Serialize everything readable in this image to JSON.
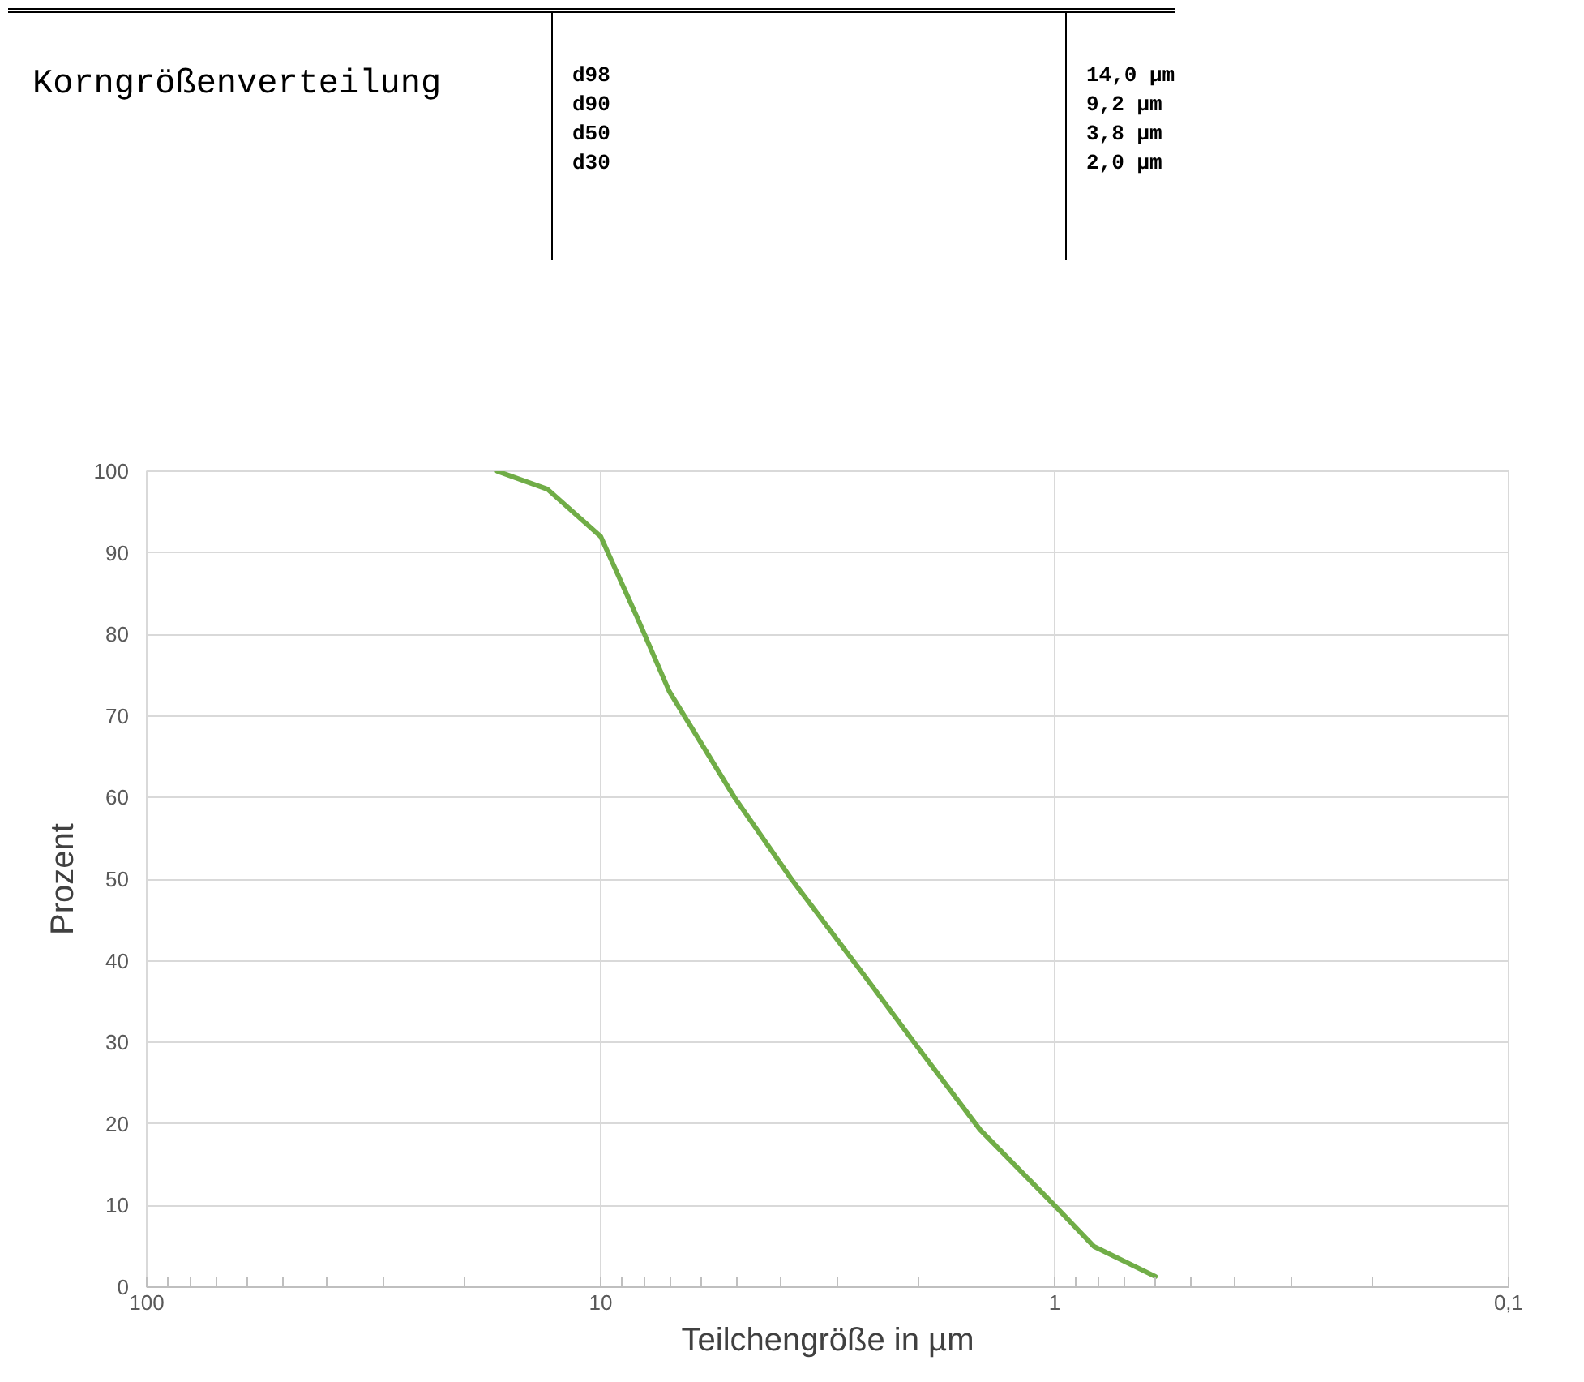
{
  "chart_data": {
    "type": "line",
    "title": "Korngrößenverteilung",
    "annotations": [
      "d98",
      "14,0 µm",
      "d90",
      "9,2 µm",
      "d50",
      "3,8 µm",
      "d30",
      "2,0 µm"
    ],
    "xlabel": "Teilchengröße in µm",
    "ylabel": "Prozent",
    "log": "x",
    "xlim": [
      100,
      0.1
    ],
    "xticks": [
      100,
      10,
      1,
      {
        "value": 0.1,
        "label": "0,1"
      }
    ],
    "ylim": [
      0,
      100
    ],
    "yticks": [
      0,
      10,
      20,
      30,
      40,
      50,
      60,
      70,
      80,
      90,
      100
    ],
    "grid": true,
    "series": [
      {
        "color": "#70ad47",
        "x": [
          16.9,
          13.1,
          10,
          8.3,
          7.06,
          5.07,
          3.8,
          2.61,
          2.04,
          1.46,
          1,
          0.82,
          0.6
        ],
        "values": [
          100,
          97.8,
          92,
          82,
          73,
          60,
          50,
          38,
          30,
          19.3,
          10,
          5,
          1.3
        ]
      }
    ]
  }
}
